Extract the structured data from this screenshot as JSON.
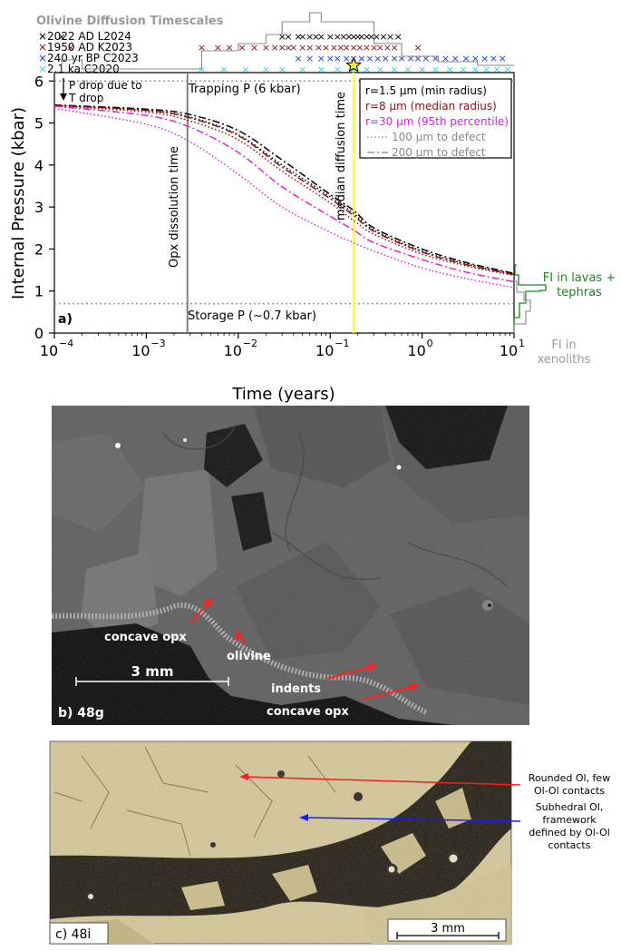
{
  "panel_a": {
    "panel_label": "a)",
    "top_title": "Olivine Diffusion Timescales",
    "xlabel": "Time (years)",
    "ylabel": "Internal Pressure (kbar)",
    "ann_pdrop_1": "P drop due to",
    "ann_pdrop_2": "T drop",
    "ann_trapping": "Trapping P (6 kbar)",
    "ann_storage": "Storage P (~0.7 kbar)",
    "ann_opx": "Opx dissolution time",
    "ann_median": "median diffusion time",
    "hist_green_1": "FI in lavas +",
    "hist_green_2": "tephras",
    "hist_grey_1": "FI in",
    "hist_grey_2": "xenoliths",
    "colors": {
      "black": "#000000",
      "darkred": "#8b1010",
      "magenta": "#e020d8",
      "blue": "#1a3fd0",
      "cyan": "#30d8e8",
      "grey": "#808080",
      "yellow": "#ffff33",
      "green": "#1a8a1a"
    }
  },
  "chart_data": {
    "type": "line",
    "xscale": "log",
    "xlim": [
      0.0001,
      10
    ],
    "ylim": [
      0,
      6.2
    ],
    "xticks": [
      0.0001,
      0.001,
      0.01,
      0.1,
      1,
      10
    ],
    "xtick_base": "10",
    "xtick_exponents": [
      "−4",
      "−3",
      "−2",
      "−1",
      "0",
      "1"
    ],
    "yticks": [
      0,
      1,
      2,
      3,
      4,
      5,
      6
    ],
    "legend": {
      "placement": "top-right",
      "entries": [
        {
          "label": "r=1.5 μm (min radius)",
          "color": "#000000",
          "style": "solid"
        },
        {
          "label": "r=8 μm (median radius)",
          "color": "#8b1010",
          "style": "solid"
        },
        {
          "label": "r=30 μm (95th percentile)",
          "color": "#e020d8",
          "style": "solid"
        },
        {
          "label": "100 μm to defect",
          "color": "#808080",
          "style": "dotted"
        },
        {
          "label": "200 μm to defect",
          "color": "#808080",
          "style": "dashdot"
        }
      ]
    },
    "curves": [
      {
        "color": "#000000",
        "style": "dotted",
        "x": [
          0.0001,
          0.001,
          0.003,
          0.01,
          0.03,
          0.1,
          0.18,
          0.3,
          1,
          3,
          10
        ],
        "y": [
          5.42,
          5.3,
          5.14,
          4.72,
          4.0,
          3.25,
          2.85,
          2.45,
          1.95,
          1.65,
          1.4
        ]
      },
      {
        "color": "#000000",
        "style": "dashdot",
        "x": [
          0.0001,
          0.001,
          0.003,
          0.01,
          0.03,
          0.1,
          0.18,
          0.3,
          1,
          3,
          10
        ],
        "y": [
          5.43,
          5.33,
          5.2,
          4.82,
          4.12,
          3.3,
          2.92,
          2.5,
          2.0,
          1.68,
          1.42
        ]
      },
      {
        "color": "#8b1010",
        "style": "dotted",
        "x": [
          0.0001,
          0.001,
          0.003,
          0.01,
          0.03,
          0.1,
          0.18,
          0.3,
          1,
          3,
          10
        ],
        "y": [
          5.41,
          5.26,
          5.05,
          4.6,
          3.85,
          3.1,
          2.68,
          2.35,
          1.88,
          1.6,
          1.37
        ]
      },
      {
        "color": "#8b1010",
        "style": "dashdot",
        "x": [
          0.0001,
          0.001,
          0.003,
          0.01,
          0.03,
          0.1,
          0.18,
          0.3,
          1,
          3,
          10
        ],
        "y": [
          5.42,
          5.3,
          5.12,
          4.7,
          3.95,
          3.2,
          2.8,
          2.42,
          1.93,
          1.63,
          1.39
        ]
      },
      {
        "color": "#e020d8",
        "style": "dotted",
        "x": [
          0.0001,
          0.001,
          0.003,
          0.01,
          0.03,
          0.1,
          0.18,
          0.3,
          1,
          3,
          10
        ],
        "y": [
          5.35,
          4.97,
          4.55,
          3.78,
          3.0,
          2.4,
          2.15,
          1.95,
          1.55,
          1.3,
          1.08
        ]
      },
      {
        "color": "#e020d8",
        "style": "dashdot",
        "x": [
          0.0001,
          0.001,
          0.003,
          0.01,
          0.03,
          0.1,
          0.18,
          0.3,
          1,
          3,
          10
        ],
        "y": [
          5.4,
          5.18,
          4.9,
          4.3,
          3.48,
          2.78,
          2.45,
          2.15,
          1.75,
          1.45,
          1.22
        ]
      }
    ],
    "hlines": [
      6.0,
      0.7
    ],
    "vlines": [
      {
        "x": 0.0028,
        "color": "#808080"
      },
      {
        "x": 0.18,
        "color": "#ffff33"
      }
    ],
    "star": {
      "x": 0.18,
      "y": 6.25
    },
    "timescale_rows": [
      {
        "label": "2022 AD L2024",
        "color": "#000000",
        "x": [
          0.00012,
          0.03,
          0.035,
          0.045,
          0.05,
          0.06,
          0.07,
          0.08,
          0.1,
          0.12,
          0.14,
          0.16,
          0.18,
          0.2,
          0.22,
          0.25,
          0.28,
          0.32,
          0.38,
          0.45,
          0.55
        ]
      },
      {
        "label": "1950 AD K2023",
        "color": "#8b1010",
        "x": [
          0.00015,
          0.004,
          0.006,
          0.008,
          0.011,
          0.015,
          0.02,
          0.025,
          0.03,
          0.035,
          0.04,
          0.05,
          0.06,
          0.075,
          0.09,
          0.11,
          0.13,
          0.15,
          0.18,
          0.21,
          0.25,
          0.3,
          0.35,
          0.42,
          0.5,
          0.9
        ]
      },
      {
        "label": "240 yr BP C2023",
        "color": "#1a3fd0",
        "x": [
          0.045,
          0.06,
          0.08,
          0.1,
          0.12,
          0.15,
          0.18,
          0.22,
          0.27,
          0.33,
          0.4,
          0.5,
          0.6,
          0.75,
          0.9,
          1.1,
          1.4,
          1.8,
          2.3,
          3.0,
          3.8,
          4.8,
          6.0,
          7.5
        ]
      },
      {
        "label": "2.1 ka C2020",
        "color": "#30d8e8",
        "x": [
          0.004,
          0.007,
          0.012,
          0.02,
          0.03,
          0.05,
          0.08,
          0.12,
          0.18,
          0.25,
          0.35,
          0.5,
          0.7,
          1.0,
          1.4,
          2.0,
          2.8,
          3.8,
          5.0,
          6.5,
          8.5
        ]
      }
    ]
  },
  "panel_b": {
    "label": "b) 48g",
    "ann_concave_opx_1": "concave opx",
    "ann_olivine": "olivine",
    "ann_indents": "indents",
    "ann_concave_opx_2": "concave opx",
    "scalebar": "3 mm"
  },
  "panel_c": {
    "label": "c) 48i",
    "ann_rounded_1": "Rounded Ol, few",
    "ann_rounded_2": "Ol-Ol contacts",
    "ann_subhedral_1": "Subhedral Ol,",
    "ann_subhedral_2": "framework",
    "ann_subhedral_3": "defined by Ol-Ol",
    "ann_subhedral_4": "contacts",
    "scalebar": "3 mm"
  }
}
